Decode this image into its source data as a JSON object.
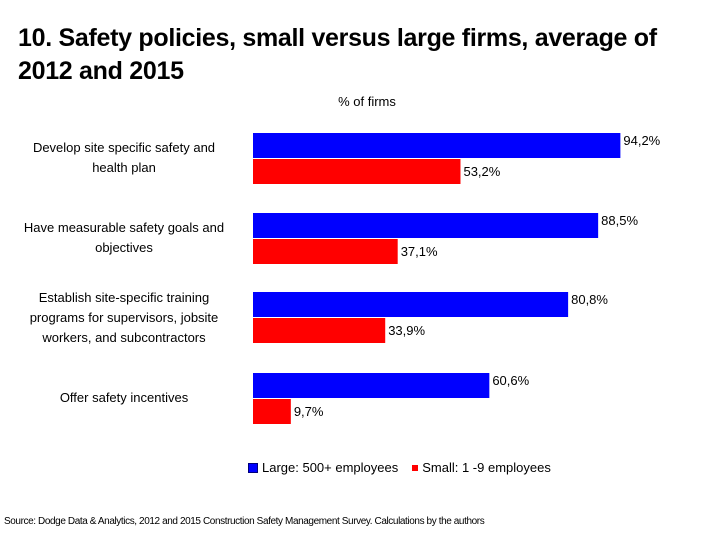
{
  "chart_data": {
    "type": "bar",
    "orientation": "horizontal",
    "title": "10. Safety policies, small versus large firms, average of 2012 and 2015",
    "subtitle": "%  of firms",
    "xlabel": "% of firms",
    "ylabel": "",
    "xlim": [
      0,
      100
    ],
    "grid": false,
    "legend_position": "bottom",
    "categories": [
      "Develop site specific safety and health plan",
      "Have measurable safety goals and objectives",
      "Establish site-specific training programs for supervisors, jobsite workers, and subcontractors",
      "Offer safety incentives"
    ],
    "category_label_lines": [
      [
        "Develop site specific safety and",
        "health plan"
      ],
      [
        "Have measurable safety goals and",
        "objectives"
      ],
      [
        "Establish site-specific training",
        "programs for supervisors, jobsite",
        "workers, and subcontractors"
      ],
      [
        "Offer safety incentives"
      ]
    ],
    "series": [
      {
        "name": "Large: 500+ employees",
        "color": "#0000ff",
        "values": [
          94.2,
          88.5,
          80.8,
          60.6
        ],
        "labels": [
          "94,2%",
          "88,5%",
          "80,8%",
          "60,6%"
        ]
      },
      {
        "name": "Small: 1-9 employees",
        "color": "#ff0000",
        "values": [
          53.2,
          37.1,
          33.9,
          9.7
        ],
        "labels": [
          "53,2%",
          "37,1%",
          "33,9%",
          "9,7%"
        ]
      }
    ],
    "legend": [
      "Large: 500+ employees",
      "Small: 1 -9 employees"
    ],
    "source": "Source: Dodge Data & Analytics, 2012 and 2015 Construction Safety Management Survey.  Calculations by the authors"
  }
}
